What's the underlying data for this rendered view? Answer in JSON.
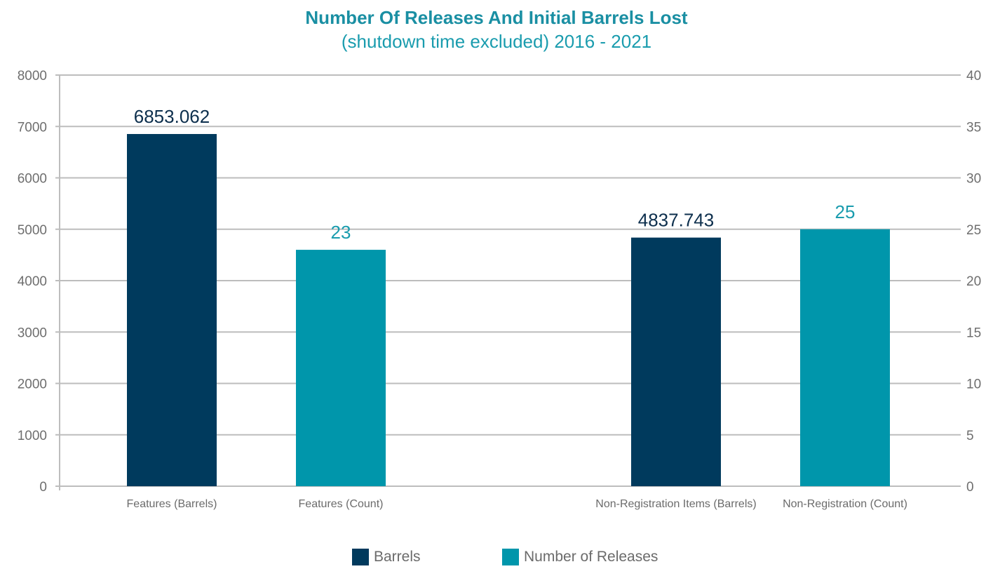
{
  "chart_data": {
    "type": "bar",
    "title": "Number Of Releases And Initial Barrels Lost",
    "subtitle": "(shutdown time excluded) 2016 - 2021",
    "categories": [
      "Features (Barrels)",
      "Features (Count)",
      "Non-Registration Items (Barrels)",
      "Non-Registration (Count)"
    ],
    "series": [
      {
        "name": "Barrels",
        "axis": "left",
        "color": "#003a5d",
        "points": [
          {
            "category": "Features (Barrels)",
            "value": 6853.062,
            "label": "6853.062"
          },
          {
            "category": "Non-Registration Items (Barrels)",
            "value": 4837.743,
            "label": "4837.743"
          }
        ]
      },
      {
        "name": "Number of Releases",
        "axis": "right",
        "color": "#0096ab",
        "points": [
          {
            "category": "Features (Count)",
            "value": 23,
            "label": "23"
          },
          {
            "category": "Non-Registration (Count)",
            "value": 25,
            "label": "25"
          }
        ]
      }
    ],
    "y_left": {
      "min": 0,
      "max": 8000,
      "ticks": [
        "0",
        "1000",
        "2000",
        "3000",
        "4000",
        "5000",
        "6000",
        "7000",
        "8000"
      ]
    },
    "y_right": {
      "min": 0,
      "max": 40,
      "ticks": [
        "0",
        "5",
        "10",
        "15",
        "20",
        "25",
        "30",
        "35",
        "40"
      ]
    },
    "grid": true,
    "legend_position": "bottom"
  }
}
